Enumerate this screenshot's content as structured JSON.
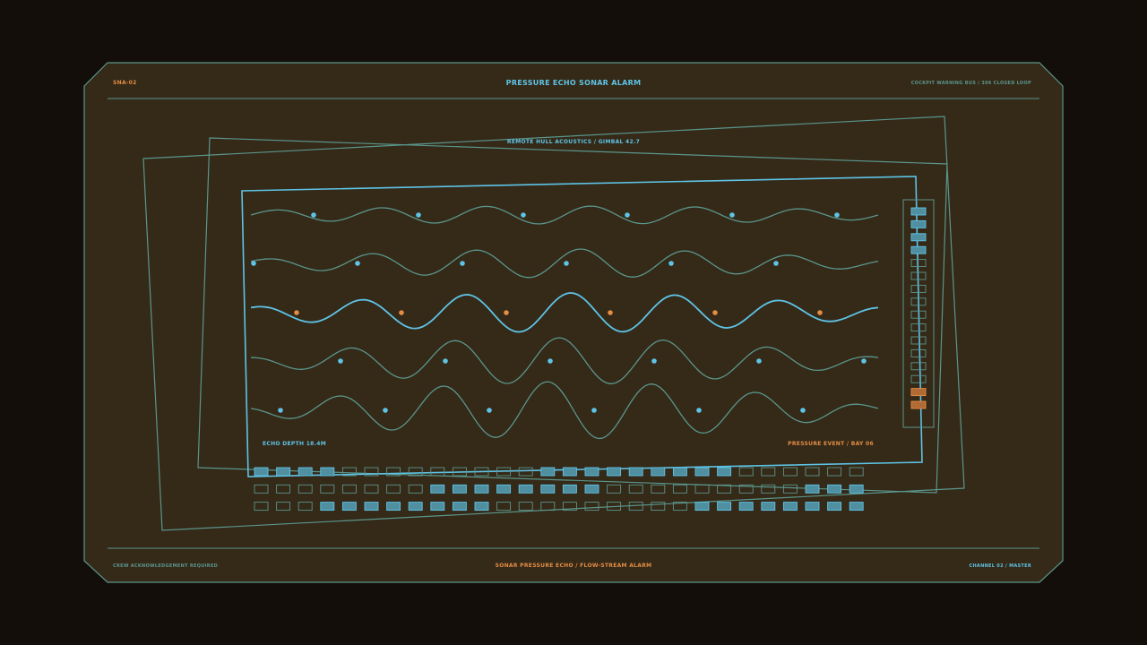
{
  "header": {
    "id": "SNA-02",
    "title": "PRESSURE ECHO SONAR ALARM",
    "subtitle": "COCKPIT WARNING BUS / 306 CLOSED LOOP"
  },
  "monitor": {
    "caption": "REMOTE HULL ACOUSTICS / GIMBAL 42.7",
    "depth_label": "ECHO DEPTH 18.4M",
    "event_label": "PRESSURE EVENT / BAY 06"
  },
  "footer": {
    "left": "CREW ACKNOWLEDGEMENT REQUIRED",
    "center": "SONAR PRESSURE ECHO / FLOW-STREAM ALARM",
    "right": "CHANNEL 02 / MASTER"
  },
  "level_meter": {
    "segments": 16,
    "states": [
      "on",
      "on",
      "on",
      "on",
      "off",
      "off",
      "off",
      "off",
      "off",
      "off",
      "off",
      "off",
      "off",
      "off",
      "warn",
      "warn"
    ]
  },
  "sequencer": {
    "rows": [
      [
        1,
        1,
        1,
        1,
        0,
        0,
        0,
        0,
        0,
        0,
        0,
        0,
        0,
        1,
        1,
        1,
        1,
        1,
        1,
        1,
        1,
        1,
        0,
        0,
        0,
        0,
        0,
        0
      ],
      [
        0,
        0,
        0,
        0,
        0,
        0,
        0,
        0,
        1,
        1,
        1,
        1,
        1,
        1,
        1,
        1,
        0,
        0,
        0,
        0,
        0,
        0,
        0,
        0,
        0,
        1,
        1,
        1
      ],
      [
        0,
        0,
        0,
        1,
        1,
        1,
        1,
        1,
        1,
        1,
        1,
        0,
        0,
        0,
        0,
        0,
        0,
        0,
        0,
        0,
        1,
        1,
        1,
        1,
        1,
        1,
        1,
        1
      ]
    ]
  },
  "colors": {
    "panel_bg": "#352918",
    "page_bg": "#130e09",
    "accent_blue": "#5ec4e6",
    "accent_orange": "#e48d45",
    "line_teal": "#5a968c"
  }
}
